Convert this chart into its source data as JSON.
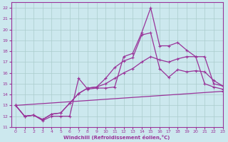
{
  "xlabel": "Windchill (Refroidissement éolien,°C)",
  "xlim": [
    -0.5,
    23
  ],
  "ylim": [
    11,
    22.5
  ],
  "xticks": [
    0,
    1,
    2,
    3,
    4,
    5,
    6,
    7,
    8,
    9,
    10,
    11,
    12,
    13,
    14,
    15,
    16,
    17,
    18,
    19,
    20,
    21,
    22,
    23
  ],
  "yticks": [
    11,
    12,
    13,
    14,
    15,
    16,
    17,
    18,
    19,
    20,
    21,
    22
  ],
  "bg_color": "#cce8ee",
  "grid_color": "#aacccc",
  "line_color": "#993399",
  "line1_x": [
    0,
    1,
    2,
    3,
    4,
    5,
    6,
    7,
    8,
    9,
    10,
    11,
    12,
    13,
    14,
    15,
    16,
    17,
    18,
    19,
    20,
    21,
    22,
    23
  ],
  "line1_y": [
    13.0,
    12.0,
    12.1,
    11.6,
    12.0,
    12.0,
    12.0,
    15.5,
    14.5,
    14.6,
    14.6,
    14.7,
    17.5,
    17.8,
    19.7,
    22.0,
    18.5,
    18.5,
    18.8,
    18.1,
    17.5,
    15.0,
    14.7,
    14.5
  ],
  "line2_x": [
    0,
    1,
    2,
    3,
    4,
    5,
    6,
    7,
    8,
    9,
    10,
    11,
    12,
    13,
    14,
    15,
    16,
    17,
    18,
    19,
    20,
    21,
    22,
    23
  ],
  "line2_y": [
    13.0,
    12.0,
    12.1,
    11.7,
    12.2,
    12.3,
    13.2,
    14.1,
    14.6,
    14.7,
    15.5,
    16.5,
    17.1,
    17.4,
    19.5,
    19.7,
    16.4,
    15.6,
    16.3,
    16.1,
    16.2,
    16.1,
    15.3,
    14.8
  ],
  "line3_x": [
    0,
    1,
    2,
    3,
    4,
    5,
    6,
    7,
    8,
    9,
    10,
    11,
    12,
    13,
    14,
    15,
    16,
    17,
    18,
    19,
    20,
    21,
    22,
    23
  ],
  "line3_y": [
    13.0,
    12.0,
    12.1,
    11.7,
    12.2,
    12.3,
    13.2,
    14.1,
    14.6,
    14.7,
    15.0,
    15.5,
    16.0,
    16.4,
    17.0,
    17.5,
    17.2,
    17.0,
    17.3,
    17.5,
    17.5,
    17.5,
    15.0,
    14.8
  ],
  "line4_x": [
    0,
    23
  ],
  "line4_y": [
    13.0,
    14.3
  ]
}
